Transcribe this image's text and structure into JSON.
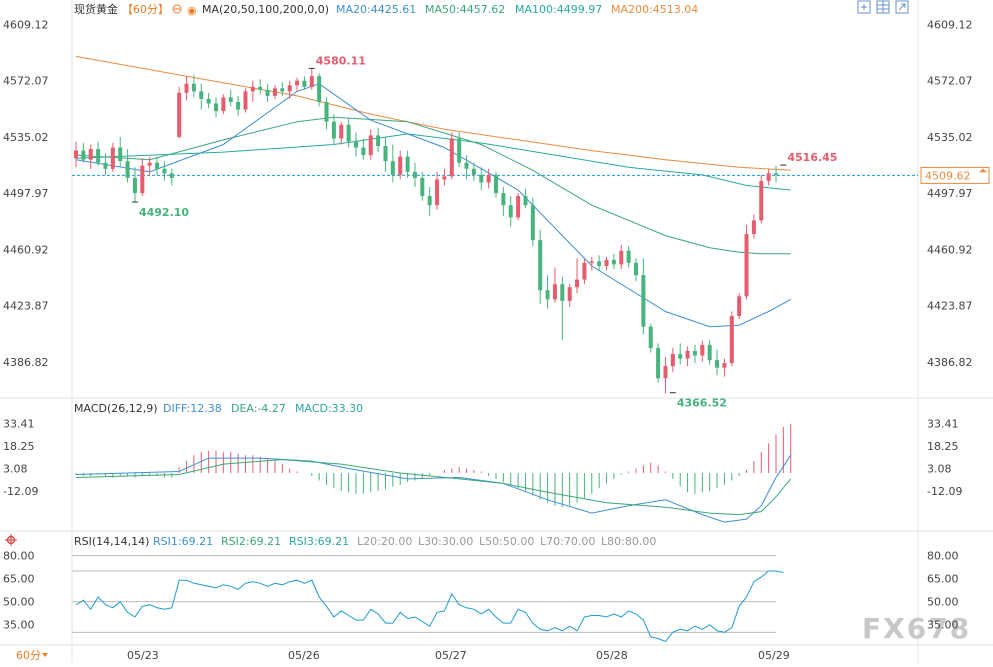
{
  "header": {
    "symbol": "现货黄金",
    "interval": "【60分】",
    "ma_label": "MA(20,50,100,200,0,0)",
    "ma20": "MA20:4425.61",
    "ma50": "MA50:4457.62",
    "ma100": "MA100:4499.97",
    "ma200": "MA200:4513.04"
  },
  "macd": {
    "label": "MACD(26,12,9)",
    "diff": "DIFF:12.38",
    "dea": "DEA:-4.27",
    "macd": "MACD:33.30",
    "ticks": [
      "33.41",
      "18.25",
      "3.08",
      "-12.09"
    ]
  },
  "rsi": {
    "label": "RSI(14,14,14)",
    "rsi1": "RSI1:69.21",
    "rsi2": "RSI2:69.21",
    "rsi3": "RSI3:69.21",
    "l20": "L20:20.00",
    "l30": "L30:30.00",
    "l50": "L50:50.00",
    "l70": "L70:70.00",
    "l80": "L80:80.00",
    "ticks": [
      "80.00",
      "65.00",
      "50.00",
      "35.00"
    ]
  },
  "interval_button": "60分",
  "watermark": "FX678",
  "colors": {
    "up": "#e75c6d",
    "down": "#46b47d",
    "ma20": "#3e8fd6",
    "ma50": "#3aa878",
    "ma100": "#2aa9a0",
    "ma200": "#ee8a3f",
    "price_line": "#1f9bd6"
  },
  "chart_data": {
    "type": "candlestick",
    "price_ticks": [
      "4609.12",
      "4572.07",
      "4535.02",
      "4497.97",
      "4460.92",
      "4423.87",
      "4386.82"
    ],
    "ylim": [
      4365,
      4612
    ],
    "x_labels": [
      "05/23",
      "05/26",
      "05/27",
      "05/28",
      "05/29"
    ],
    "current_price": "4509.62",
    "annotations": [
      {
        "text": "4580.11",
        "value": 4580.11,
        "type": "high"
      },
      {
        "text": "4492.10",
        "value": 4492.1,
        "type": "low"
      },
      {
        "text": "4366.52",
        "value": 4366.52,
        "type": "low"
      },
      {
        "text": "4516.45",
        "value": 4516.45,
        "type": "high"
      }
    ],
    "candles": [
      {
        "o": 4521,
        "h": 4532,
        "l": 4515,
        "c": 4526
      },
      {
        "o": 4526,
        "h": 4531,
        "l": 4518,
        "c": 4520
      },
      {
        "o": 4520,
        "h": 4530,
        "l": 4514,
        "c": 4527
      },
      {
        "o": 4527,
        "h": 4532,
        "l": 4516,
        "c": 4518
      },
      {
        "o": 4518,
        "h": 4524,
        "l": 4510,
        "c": 4514
      },
      {
        "o": 4514,
        "h": 4531,
        "l": 4512,
        "c": 4528
      },
      {
        "o": 4528,
        "h": 4535,
        "l": 4515,
        "c": 4519
      },
      {
        "o": 4519,
        "h": 4527,
        "l": 4505,
        "c": 4508
      },
      {
        "o": 4508,
        "h": 4515,
        "l": 4492,
        "c": 4498
      },
      {
        "o": 4498,
        "h": 4521,
        "l": 4496,
        "c": 4516
      },
      {
        "o": 4516,
        "h": 4522,
        "l": 4509,
        "c": 4518
      },
      {
        "o": 4518,
        "h": 4522,
        "l": 4510,
        "c": 4514
      },
      {
        "o": 4514,
        "h": 4519,
        "l": 4506,
        "c": 4511
      },
      {
        "o": 4511,
        "h": 4514,
        "l": 4503,
        "c": 4508
      },
      {
        "o": 4535,
        "h": 4568,
        "l": 4534,
        "c": 4564
      },
      {
        "o": 4564,
        "h": 4575,
        "l": 4559,
        "c": 4570
      },
      {
        "o": 4570,
        "h": 4576,
        "l": 4561,
        "c": 4565
      },
      {
        "o": 4565,
        "h": 4570,
        "l": 4553,
        "c": 4560
      },
      {
        "o": 4560,
        "h": 4564,
        "l": 4554,
        "c": 4557
      },
      {
        "o": 4557,
        "h": 4561,
        "l": 4548,
        "c": 4552
      },
      {
        "o": 4552,
        "h": 4563,
        "l": 4550,
        "c": 4561
      },
      {
        "o": 4561,
        "h": 4566,
        "l": 4555,
        "c": 4558
      },
      {
        "o": 4558,
        "h": 4562,
        "l": 4549,
        "c": 4553
      },
      {
        "o": 4553,
        "h": 4567,
        "l": 4551,
        "c": 4565
      },
      {
        "o": 4565,
        "h": 4572,
        "l": 4558,
        "c": 4568
      },
      {
        "o": 4568,
        "h": 4573,
        "l": 4563,
        "c": 4566
      },
      {
        "o": 4566,
        "h": 4570,
        "l": 4558,
        "c": 4562
      },
      {
        "o": 4562,
        "h": 4569,
        "l": 4560,
        "c": 4567
      },
      {
        "o": 4567,
        "h": 4571,
        "l": 4562,
        "c": 4565
      },
      {
        "o": 4565,
        "h": 4572,
        "l": 4560,
        "c": 4569
      },
      {
        "o": 4569,
        "h": 4574,
        "l": 4565,
        "c": 4572
      },
      {
        "o": 4572,
        "h": 4575,
        "l": 4566,
        "c": 4568
      },
      {
        "o": 4568,
        "h": 4580,
        "l": 4566,
        "c": 4575
      },
      {
        "o": 4575,
        "h": 4577,
        "l": 4555,
        "c": 4558
      },
      {
        "o": 4558,
        "h": 4561,
        "l": 4540,
        "c": 4545
      },
      {
        "o": 4545,
        "h": 4550,
        "l": 4530,
        "c": 4534
      },
      {
        "o": 4534,
        "h": 4545,
        "l": 4530,
        "c": 4543
      },
      {
        "o": 4543,
        "h": 4547,
        "l": 4528,
        "c": 4532
      },
      {
        "o": 4532,
        "h": 4538,
        "l": 4522,
        "c": 4528
      },
      {
        "o": 4528,
        "h": 4534,
        "l": 4520,
        "c": 4523
      },
      {
        "o": 4523,
        "h": 4540,
        "l": 4520,
        "c": 4536
      },
      {
        "o": 4536,
        "h": 4541,
        "l": 4525,
        "c": 4529
      },
      {
        "o": 4529,
        "h": 4535,
        "l": 4512,
        "c": 4519
      },
      {
        "o": 4519,
        "h": 4530,
        "l": 4505,
        "c": 4510
      },
      {
        "o": 4510,
        "h": 4526,
        "l": 4507,
        "c": 4522
      },
      {
        "o": 4522,
        "h": 4526,
        "l": 4508,
        "c": 4512
      },
      {
        "o": 4512,
        "h": 4518,
        "l": 4502,
        "c": 4508
      },
      {
        "o": 4508,
        "h": 4512,
        "l": 4493,
        "c": 4496
      },
      {
        "o": 4496,
        "h": 4502,
        "l": 4483,
        "c": 4490
      },
      {
        "o": 4490,
        "h": 4512,
        "l": 4487,
        "c": 4507
      },
      {
        "o": 4507,
        "h": 4514,
        "l": 4503,
        "c": 4509
      },
      {
        "o": 4509,
        "h": 4538,
        "l": 4507,
        "c": 4534
      },
      {
        "o": 4534,
        "h": 4538,
        "l": 4515,
        "c": 4518
      },
      {
        "o": 4518,
        "h": 4523,
        "l": 4507,
        "c": 4514
      },
      {
        "o": 4514,
        "h": 4518,
        "l": 4506,
        "c": 4510
      },
      {
        "o": 4510,
        "h": 4515,
        "l": 4500,
        "c": 4505
      },
      {
        "o": 4505,
        "h": 4514,
        "l": 4501,
        "c": 4510
      },
      {
        "o": 4510,
        "h": 4512,
        "l": 4495,
        "c": 4498
      },
      {
        "o": 4498,
        "h": 4502,
        "l": 4483,
        "c": 4490
      },
      {
        "o": 4490,
        "h": 4496,
        "l": 4476,
        "c": 4482
      },
      {
        "o": 4482,
        "h": 4498,
        "l": 4480,
        "c": 4496
      },
      {
        "o": 4496,
        "h": 4501,
        "l": 4488,
        "c": 4490
      },
      {
        "o": 4490,
        "h": 4495,
        "l": 4463,
        "c": 4467
      },
      {
        "o": 4467,
        "h": 4474,
        "l": 4425,
        "c": 4434
      },
      {
        "o": 4434,
        "h": 4444,
        "l": 4422,
        "c": 4428
      },
      {
        "o": 4428,
        "h": 4449,
        "l": 4426,
        "c": 4438
      },
      {
        "o": 4438,
        "h": 4443,
        "l": 4401,
        "c": 4427
      },
      {
        "o": 4427,
        "h": 4438,
        "l": 4423,
        "c": 4436
      },
      {
        "o": 4436,
        "h": 4455,
        "l": 4432,
        "c": 4441
      },
      {
        "o": 4441,
        "h": 4455,
        "l": 4438,
        "c": 4452
      },
      {
        "o": 4452,
        "h": 4456,
        "l": 4447,
        "c": 4453
      },
      {
        "o": 4453,
        "h": 4457,
        "l": 4447,
        "c": 4450
      },
      {
        "o": 4450,
        "h": 4456,
        "l": 4447,
        "c": 4454
      },
      {
        "o": 4454,
        "h": 4458,
        "l": 4448,
        "c": 4451
      },
      {
        "o": 4451,
        "h": 4464,
        "l": 4448,
        "c": 4460
      },
      {
        "o": 4460,
        "h": 4463,
        "l": 4449,
        "c": 4452
      },
      {
        "o": 4452,
        "h": 4455,
        "l": 4440,
        "c": 4444
      },
      {
        "o": 4444,
        "h": 4455,
        "l": 4405,
        "c": 4410
      },
      {
        "o": 4410,
        "h": 4412,
        "l": 4393,
        "c": 4396
      },
      {
        "o": 4396,
        "h": 4399,
        "l": 4373,
        "c": 4376
      },
      {
        "o": 4376,
        "h": 4390,
        "l": 4366,
        "c": 4384
      },
      {
        "o": 4384,
        "h": 4396,
        "l": 4380,
        "c": 4392
      },
      {
        "o": 4392,
        "h": 4399,
        "l": 4385,
        "c": 4389
      },
      {
        "o": 4389,
        "h": 4397,
        "l": 4384,
        "c": 4394
      },
      {
        "o": 4394,
        "h": 4398,
        "l": 4386,
        "c": 4391
      },
      {
        "o": 4391,
        "h": 4401,
        "l": 4387,
        "c": 4398
      },
      {
        "o": 4398,
        "h": 4401,
        "l": 4385,
        "c": 4388
      },
      {
        "o": 4388,
        "h": 4395,
        "l": 4378,
        "c": 4383
      },
      {
        "o": 4383,
        "h": 4389,
        "l": 4377,
        "c": 4386
      },
      {
        "o": 4386,
        "h": 4420,
        "l": 4384,
        "c": 4417
      },
      {
        "o": 4417,
        "h": 4432,
        "l": 4415,
        "c": 4430
      },
      {
        "o": 4430,
        "h": 4477,
        "l": 4428,
        "c": 4471
      },
      {
        "o": 4471,
        "h": 4484,
        "l": 4468,
        "c": 4480
      },
      {
        "o": 4480,
        "h": 4510,
        "l": 4478,
        "c": 4506
      },
      {
        "o": 4506,
        "h": 4514,
        "l": 4503,
        "c": 4511
      },
      {
        "o": 4511,
        "h": 4516,
        "l": 4505,
        "c": 4510
      }
    ],
    "ma20": [
      [
        0,
        4520
      ],
      [
        10,
        4512
      ],
      [
        20,
        4530
      ],
      [
        30,
        4565
      ],
      [
        33,
        4570
      ],
      [
        40,
        4546
      ],
      [
        50,
        4528
      ],
      [
        60,
        4500
      ],
      [
        64,
        4480
      ],
      [
        70,
        4450
      ],
      [
        80,
        4420
      ],
      [
        86,
        4410
      ],
      [
        90,
        4411
      ],
      [
        94,
        4420
      ],
      [
        97,
        4428
      ]
    ],
    "ma50": [
      [
        0,
        4523
      ],
      [
        10,
        4520
      ],
      [
        20,
        4533
      ],
      [
        30,
        4545
      ],
      [
        35,
        4548
      ],
      [
        45,
        4545
      ],
      [
        55,
        4530
      ],
      [
        62,
        4513
      ],
      [
        70,
        4490
      ],
      [
        80,
        4470
      ],
      [
        86,
        4462
      ],
      [
        90,
        4459
      ],
      [
        93,
        4458
      ],
      [
        97,
        4458
      ]
    ],
    "ma100": [
      [
        0,
        4521
      ],
      [
        20,
        4525
      ],
      [
        35,
        4530
      ],
      [
        45,
        4537
      ],
      [
        55,
        4531
      ],
      [
        65,
        4523
      ],
      [
        75,
        4515
      ],
      [
        85,
        4510
      ],
      [
        91,
        4503
      ],
      [
        97,
        4500
      ]
    ],
    "ma200": [
      [
        0,
        4588
      ],
      [
        15,
        4575
      ],
      [
        30,
        4562
      ],
      [
        40,
        4550
      ],
      [
        50,
        4540
      ],
      [
        60,
        4533
      ],
      [
        70,
        4526
      ],
      [
        80,
        4520
      ],
      [
        90,
        4515
      ],
      [
        97,
        4513
      ]
    ],
    "macd_ylim": [
      -37,
      37
    ],
    "macd_hist": [
      -1,
      -2,
      -2,
      -1,
      -2,
      -3,
      -2,
      -2,
      -3,
      -2,
      -2,
      -2,
      -3,
      -3,
      4,
      8,
      12,
      14,
      15,
      15,
      14,
      14,
      13,
      12,
      12,
      11,
      10,
      8,
      6,
      3,
      1,
      0,
      -2,
      -5,
      -8,
      -10,
      -12,
      -13,
      -14,
      -14,
      -13,
      -12,
      -11,
      -9,
      -8,
      -6,
      -5,
      -4,
      -2,
      0,
      2,
      3,
      4,
      3,
      2,
      1,
      -2,
      -4,
      -6,
      -8,
      -10,
      -12,
      -15,
      -18,
      -20,
      -22,
      -23,
      -22,
      -20,
      -17,
      -14,
      -10,
      -7,
      -4,
      -1,
      1,
      3,
      5,
      7,
      5,
      1,
      -4,
      -9,
      -13,
      -14,
      -13,
      -12,
      -10,
      -8,
      -5,
      -2,
      2,
      8,
      14,
      20,
      26,
      31,
      33
    ],
    "macd_diff": [
      [
        0,
        -1
      ],
      [
        14,
        1
      ],
      [
        18,
        10
      ],
      [
        25,
        10
      ],
      [
        32,
        8
      ],
      [
        37,
        3
      ],
      [
        45,
        -4
      ],
      [
        52,
        -3
      ],
      [
        58,
        -7
      ],
      [
        64,
        -18
      ],
      [
        70,
        -27
      ],
      [
        75,
        -22
      ],
      [
        80,
        -18
      ],
      [
        85,
        -28
      ],
      [
        88,
        -33
      ],
      [
        91,
        -31
      ],
      [
        93,
        -22
      ],
      [
        95,
        -3
      ],
      [
        97,
        12
      ]
    ],
    "macd_dea": [
      [
        0,
        -3
      ],
      [
        14,
        -1
      ],
      [
        20,
        6
      ],
      [
        28,
        9
      ],
      [
        36,
        6
      ],
      [
        44,
        0
      ],
      [
        52,
        -4
      ],
      [
        58,
        -7
      ],
      [
        64,
        -13
      ],
      [
        72,
        -20
      ],
      [
        80,
        -23
      ],
      [
        86,
        -27
      ],
      [
        90,
        -28
      ],
      [
        93,
        -26
      ],
      [
        95,
        -16
      ],
      [
        97,
        -4
      ]
    ],
    "rsi_ylim": [
      25,
      85
    ],
    "rsi_lines": [
      80,
      70,
      50,
      30
    ],
    "rsi": [
      48,
      51,
      45,
      53,
      48,
      46,
      50,
      43,
      40,
      47,
      48,
      46,
      45,
      46,
      64,
      64,
      62,
      61,
      60,
      59,
      61,
      60,
      58,
      62,
      63,
      62,
      60,
      62,
      61,
      63,
      64,
      62,
      64,
      53,
      47,
      40,
      44,
      41,
      38,
      38,
      45,
      42,
      36,
      36,
      43,
      39,
      40,
      37,
      34,
      43,
      44,
      55,
      48,
      46,
      45,
      42,
      45,
      40,
      36,
      36,
      45,
      43,
      36,
      32,
      31,
      33,
      31,
      34,
      31,
      40,
      41,
      41,
      40,
      42,
      40,
      44,
      42,
      38,
      27,
      26,
      24,
      30,
      32,
      31,
      34,
      32,
      35,
      31,
      30,
      33,
      47,
      53,
      63,
      66,
      70,
      70,
      69
    ]
  }
}
